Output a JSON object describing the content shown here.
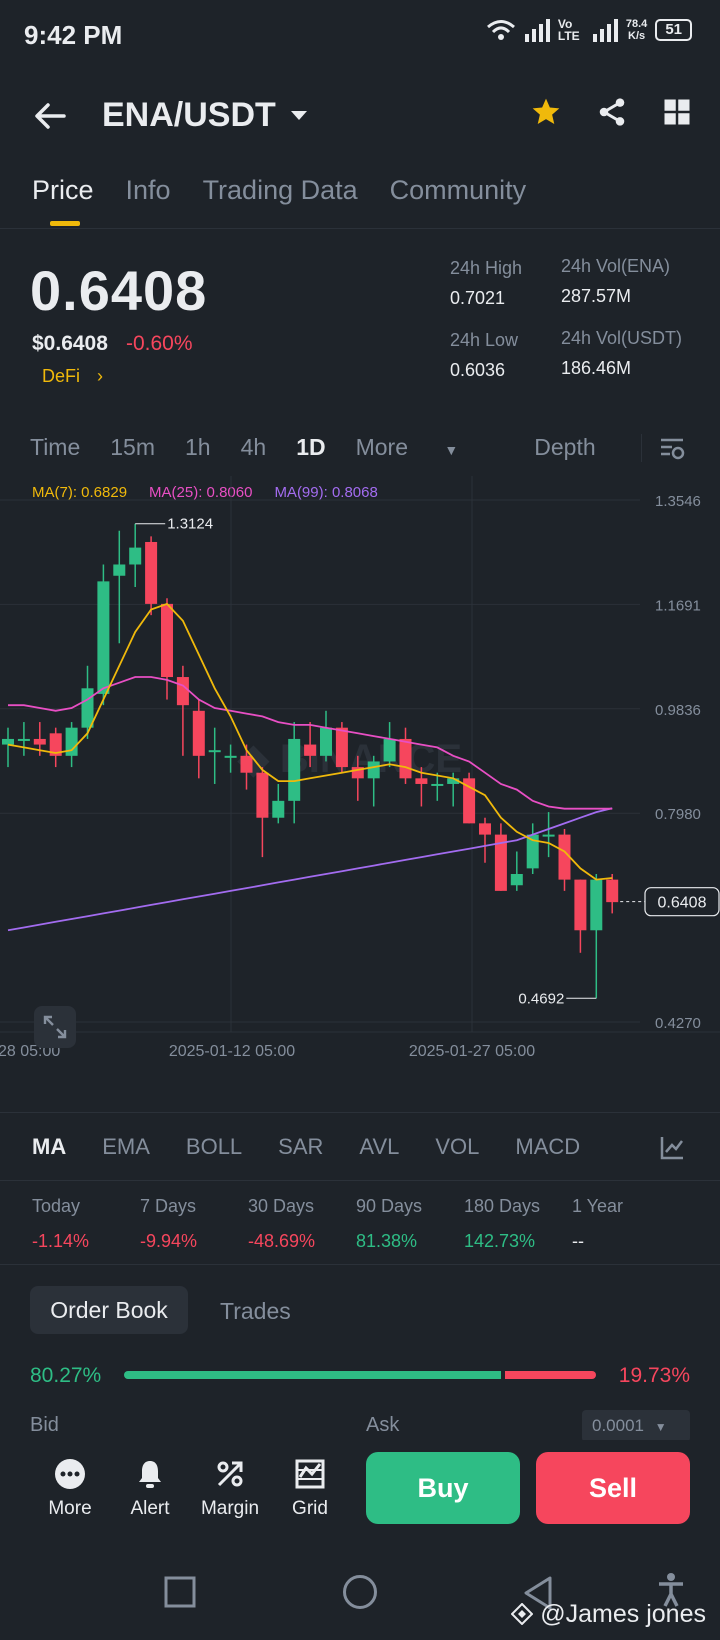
{
  "status_bar": {
    "time": "9:42 PM",
    "network_speed_value": "78.4",
    "network_speed_unit": "K/s",
    "battery": "51",
    "net_label": "Vo LTE"
  },
  "header": {
    "pair": "ENA/USDT"
  },
  "tabs": [
    {
      "label": "Price"
    },
    {
      "label": "Info"
    },
    {
      "label": "Trading Data"
    },
    {
      "label": "Community"
    }
  ],
  "price": {
    "last": "0.6408",
    "fiat": "$0.6408",
    "change": "-0.60%",
    "tag": "DeFi",
    "high_label": "24h High",
    "high": "0.7021",
    "low_label": "24h Low",
    "low": "0.6036",
    "vol_base_label": "24h Vol(ENA)",
    "vol_base": "287.57M",
    "vol_quote_label": "24h Vol(USDT)",
    "vol_quote": "186.46M"
  },
  "intervals": {
    "time": "Time",
    "m15": "15m",
    "h1": "1h",
    "h4": "4h",
    "d1": "1D",
    "more": "More",
    "depth": "Depth"
  },
  "ma_legend": {
    "ma7": "MA(7): 0.6829",
    "ma25": "MA(25): 0.8060",
    "ma99": "MA(99): 0.8068"
  },
  "colors": {
    "up": "#2ebd85",
    "down": "#f6465d",
    "accent": "#f0b90b",
    "ma7": "#f0b90b",
    "ma25": "#e84fc4",
    "ma99": "#a36cf0"
  },
  "chart_data": {
    "type": "candlestick",
    "y_ticks": [
      "1.3546",
      "1.1691",
      "0.9836",
      "0.7980",
      "0.4270"
    ],
    "ylim": [
      0.427,
      1.3546
    ],
    "x_ticks": [
      "28 05:00",
      "2025-01-12 05:00",
      "2025-01-27 05:00"
    ],
    "current_price": "0.6408",
    "high_marker": "1.3124",
    "low_marker": "0.4692",
    "candles": [
      [
        0.92,
        0.95,
        0.88,
        0.93
      ],
      [
        0.93,
        0.96,
        0.9,
        0.93
      ],
      [
        0.93,
        0.96,
        0.9,
        0.92
      ],
      [
        0.94,
        0.95,
        0.88,
        0.9
      ],
      [
        0.9,
        0.96,
        0.88,
        0.95
      ],
      [
        0.95,
        1.06,
        0.93,
        1.02
      ],
      [
        1.01,
        1.24,
        0.99,
        1.21
      ],
      [
        1.22,
        1.3,
        1.1,
        1.24
      ],
      [
        1.24,
        1.3124,
        1.2,
        1.27
      ],
      [
        1.28,
        1.29,
        1.15,
        1.17
      ],
      [
        1.17,
        1.18,
        1.0,
        1.04
      ],
      [
        1.04,
        1.06,
        0.9,
        0.99
      ],
      [
        0.98,
        1.0,
        0.86,
        0.9
      ],
      [
        0.91,
        0.95,
        0.85,
        0.91
      ],
      [
        0.9,
        0.92,
        0.87,
        0.9
      ],
      [
        0.9,
        0.92,
        0.84,
        0.87
      ],
      [
        0.87,
        0.88,
        0.72,
        0.79
      ],
      [
        0.79,
        0.85,
        0.78,
        0.82
      ],
      [
        0.82,
        0.96,
        0.78,
        0.93
      ],
      [
        0.92,
        0.96,
        0.88,
        0.9
      ],
      [
        0.9,
        0.98,
        0.89,
        0.95
      ],
      [
        0.95,
        0.96,
        0.87,
        0.88
      ],
      [
        0.88,
        0.9,
        0.82,
        0.86
      ],
      [
        0.86,
        0.9,
        0.81,
        0.89
      ],
      [
        0.89,
        0.96,
        0.88,
        0.93
      ],
      [
        0.93,
        0.95,
        0.85,
        0.86
      ],
      [
        0.86,
        0.88,
        0.81,
        0.85
      ],
      [
        0.85,
        0.87,
        0.82,
        0.85
      ],
      [
        0.85,
        0.87,
        0.81,
        0.86
      ],
      [
        0.86,
        0.87,
        0.78,
        0.78
      ],
      [
        0.78,
        0.79,
        0.71,
        0.76
      ],
      [
        0.76,
        0.78,
        0.66,
        0.66
      ],
      [
        0.67,
        0.73,
        0.66,
        0.69
      ],
      [
        0.7,
        0.78,
        0.69,
        0.76
      ],
      [
        0.76,
        0.8,
        0.72,
        0.76
      ],
      [
        0.76,
        0.77,
        0.66,
        0.68
      ],
      [
        0.68,
        0.68,
        0.55,
        0.59
      ],
      [
        0.59,
        0.69,
        0.4692,
        0.68
      ],
      [
        0.68,
        0.69,
        0.62,
        0.64
      ]
    ],
    "ma7": [
      0.92,
      0.915,
      0.91,
      0.905,
      0.91,
      0.94,
      1.0,
      1.06,
      1.12,
      1.16,
      1.17,
      1.14,
      1.08,
      1.02,
      0.97,
      0.91,
      0.875,
      0.855,
      0.855,
      0.86,
      0.865,
      0.87,
      0.875,
      0.88,
      0.885,
      0.88,
      0.87,
      0.865,
      0.86,
      0.845,
      0.83,
      0.79,
      0.765,
      0.75,
      0.745,
      0.73,
      0.7,
      0.68,
      0.6829
    ],
    "ma25": [
      0.99,
      0.99,
      0.985,
      0.98,
      0.985,
      1.0,
      1.02,
      1.03,
      1.04,
      1.04,
      1.035,
      1.025,
      1.0,
      0.985,
      0.98,
      0.975,
      0.97,
      0.96,
      0.955,
      0.955,
      0.95,
      0.945,
      0.94,
      0.935,
      0.93,
      0.925,
      0.92,
      0.915,
      0.9,
      0.89,
      0.87,
      0.85,
      0.84,
      0.82,
      0.81,
      0.806,
      0.806,
      0.806,
      0.806
    ],
    "ma99": [
      0.59,
      0.595,
      0.6,
      0.605,
      0.61,
      0.615,
      0.62,
      0.625,
      0.63,
      0.635,
      0.64,
      0.645,
      0.65,
      0.655,
      0.66,
      0.665,
      0.67,
      0.675,
      0.68,
      0.685,
      0.69,
      0.695,
      0.7,
      0.705,
      0.71,
      0.715,
      0.72,
      0.725,
      0.73,
      0.735,
      0.74,
      0.745,
      0.75,
      0.76,
      0.77,
      0.78,
      0.79,
      0.8,
      0.8068
    ]
  },
  "indicators": [
    "MA",
    "EMA",
    "BOLL",
    "SAR",
    "AVL",
    "VOL",
    "MACD"
  ],
  "performance": [
    {
      "label": "Today",
      "value": "-1.14%",
      "dir": "down"
    },
    {
      "label": "7 Days",
      "value": "-9.94%",
      "dir": "down"
    },
    {
      "label": "30 Days",
      "value": "-48.69%",
      "dir": "down"
    },
    {
      "label": "90 Days",
      "value": "81.38%",
      "dir": "up"
    },
    {
      "label": "180 Days",
      "value": "142.73%",
      "dir": "up"
    },
    {
      "label": "1 Year",
      "value": "--",
      "dir": "flat"
    }
  ],
  "orderbook": {
    "tab_book": "Order Book",
    "tab_trades": "Trades",
    "bid_pct": "80.27%",
    "ask_pct": "19.73%",
    "bid_label": "Bid",
    "ask_label": "Ask",
    "precision": "0.0001",
    "bid_fraction": 0.8027
  },
  "actions": {
    "more": "More",
    "alert": "Alert",
    "margin": "Margin",
    "grid": "Grid",
    "buy": "Buy",
    "sell": "Sell"
  },
  "watermark": "@James jones"
}
